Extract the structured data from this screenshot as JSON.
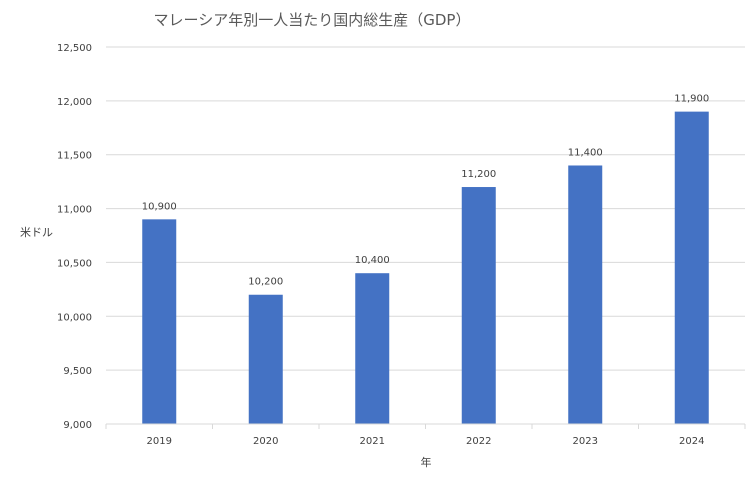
{
  "chart_data": {
    "type": "bar",
    "title": "マレーシア年別一人当たり国内総生産（GDP）",
    "xlabel": "年",
    "ylabel": "米ドル",
    "categories": [
      "2019",
      "2020",
      "2021",
      "2022",
      "2023",
      "2024"
    ],
    "values": [
      10900,
      10200,
      10400,
      11200,
      11400,
      11900
    ],
    "value_labels": [
      "10,900",
      "10,200",
      "10,400",
      "11,200",
      "11,400",
      "11,900"
    ],
    "y_ticks": [
      9000,
      9500,
      10000,
      10500,
      11000,
      11500,
      12000,
      12500
    ],
    "y_tick_labels": [
      "9,000",
      "9,500",
      "10,000",
      "10,500",
      "11,000",
      "11,500",
      "12,000",
      "12,500"
    ],
    "ylim": [
      9000,
      12500
    ],
    "grid": true,
    "bar_color": "#4472c4"
  }
}
